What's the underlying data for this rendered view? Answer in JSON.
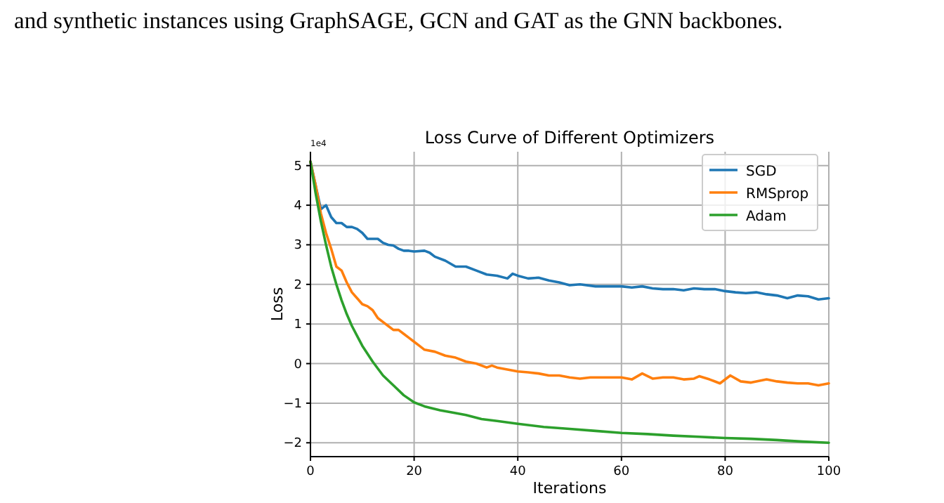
{
  "chart_data": {
    "type": "line",
    "title": "Loss Curve of Different Optimizers",
    "xlabel": "Iterations",
    "ylabel": "Loss",
    "annotations": [
      "and synthetic instances using GraphSAGE, GCN and GAT as the GNN backbones.",
      "1e4"
    ],
    "xlim": [
      0,
      100
    ],
    "xticks": [
      0,
      20,
      40,
      60,
      80,
      100
    ],
    "ylim": [
      -2.35,
      5.35
    ],
    "yticks": [
      {
        "value": -2,
        "label": "−2"
      },
      {
        "value": -1,
        "label": "−1"
      },
      0,
      1,
      2,
      3,
      4,
      5
    ],
    "grid": true,
    "legend": "top right",
    "line_style": "solid",
    "marker": "none",
    "series": [
      {
        "name": "SGD",
        "color": "#1f77b4",
        "x": [
          0,
          1,
          2,
          3,
          4,
          5,
          6,
          7,
          8,
          9,
          10,
          11,
          12,
          13,
          14,
          15,
          16,
          17,
          18,
          19,
          20,
          22,
          23,
          24,
          26,
          28,
          30,
          32,
          34,
          36,
          38,
          39,
          40,
          42,
          44,
          46,
          48,
          50,
          52,
          55,
          58,
          60,
          62,
          64,
          66,
          68,
          70,
          72,
          74,
          76,
          78,
          80,
          82,
          84,
          86,
          88,
          90,
          92,
          94,
          96,
          98,
          100
        ],
        "values": [
          5.1,
          4.5,
          3.9,
          4.0,
          3.7,
          3.55,
          3.55,
          3.45,
          3.45,
          3.4,
          3.3,
          3.15,
          3.15,
          3.15,
          3.05,
          3.0,
          2.98,
          2.9,
          2.85,
          2.85,
          2.83,
          2.85,
          2.8,
          2.7,
          2.6,
          2.45,
          2.45,
          2.35,
          2.25,
          2.22,
          2.15,
          2.27,
          2.22,
          2.15,
          2.17,
          2.1,
          2.05,
          1.98,
          2.0,
          1.95,
          1.95,
          1.95,
          1.92,
          1.95,
          1.9,
          1.88,
          1.88,
          1.85,
          1.9,
          1.88,
          1.88,
          1.83,
          1.8,
          1.78,
          1.8,
          1.75,
          1.72,
          1.65,
          1.72,
          1.7,
          1.62,
          1.65
        ]
      },
      {
        "name": "RMSprop",
        "color": "#ff7f0e",
        "x": [
          0,
          1,
          2,
          3,
          4,
          5,
          6,
          7,
          8,
          9,
          10,
          11,
          12,
          13,
          14,
          15,
          16,
          17,
          18,
          19,
          20,
          21,
          22,
          24,
          26,
          28,
          30,
          32,
          34,
          35,
          36,
          38,
          40,
          42,
          44,
          46,
          48,
          50,
          52,
          54,
          56,
          58,
          60,
          62,
          64,
          66,
          68,
          70,
          72,
          74,
          75,
          77,
          79,
          81,
          83,
          85,
          86,
          88,
          90,
          92,
          94,
          96,
          98,
          100
        ],
        "values": [
          5.1,
          4.5,
          3.8,
          3.3,
          2.9,
          2.45,
          2.35,
          2.05,
          1.8,
          1.65,
          1.5,
          1.45,
          1.35,
          1.15,
          1.05,
          0.95,
          0.85,
          0.85,
          0.75,
          0.65,
          0.55,
          0.45,
          0.35,
          0.3,
          0.2,
          0.15,
          0.05,
          0.0,
          -0.1,
          -0.05,
          -0.1,
          -0.15,
          -0.2,
          -0.22,
          -0.25,
          -0.3,
          -0.3,
          -0.35,
          -0.38,
          -0.35,
          -0.35,
          -0.35,
          -0.35,
          -0.4,
          -0.25,
          -0.38,
          -0.35,
          -0.35,
          -0.4,
          -0.38,
          -0.32,
          -0.4,
          -0.5,
          -0.3,
          -0.45,
          -0.48,
          -0.45,
          -0.4,
          -0.45,
          -0.48,
          -0.5,
          -0.5,
          -0.55,
          -0.5
        ]
      },
      {
        "name": "Adam",
        "color": "#2ca02c",
        "x": [
          0,
          1,
          2,
          3,
          4,
          5,
          6,
          7,
          8,
          9,
          10,
          12,
          14,
          16,
          18,
          20,
          22,
          25,
          28,
          30,
          33,
          36,
          40,
          45,
          50,
          55,
          60,
          65,
          70,
          75,
          80,
          85,
          90,
          95,
          100
        ],
        "values": [
          5.1,
          4.3,
          3.6,
          3.0,
          2.45,
          2.0,
          1.6,
          1.25,
          0.95,
          0.7,
          0.45,
          0.05,
          -0.3,
          -0.55,
          -0.8,
          -0.98,
          -1.08,
          -1.18,
          -1.25,
          -1.3,
          -1.4,
          -1.45,
          -1.52,
          -1.6,
          -1.65,
          -1.7,
          -1.75,
          -1.78,
          -1.82,
          -1.85,
          -1.88,
          -1.9,
          -1.93,
          -1.97,
          -2.0
        ]
      }
    ]
  }
}
